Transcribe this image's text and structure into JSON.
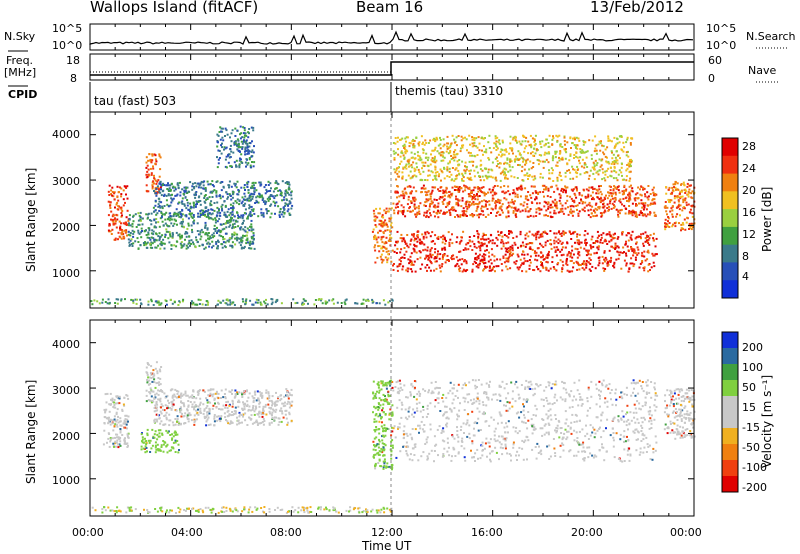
{
  "header": {
    "station": "Wallops Island (fitACF)",
    "beam": "Beam 16",
    "date": "13/Feb/2012"
  },
  "top_panels": {
    "nsky_label": "N.Sky",
    "nsky_ticks": [
      "10^5",
      "10^0"
    ],
    "nsearch_label": "N.Search",
    "nsearch_ticks": [
      "10^5",
      "10^0"
    ],
    "freq_label": "Freq.",
    "freq_unit": "[MHz]",
    "freq_ticks": [
      "18",
      "8"
    ],
    "nave_label": "Nave",
    "nave_ticks": [
      "60",
      "0"
    ],
    "cpid_label": "CPID",
    "cpid_segments": [
      {
        "label": "tau (fast) 503",
        "start_hour": 0,
        "end_hour": 12
      },
      {
        "label": "themis (tau) 3310",
        "start_hour": 12,
        "end_hour": 24
      }
    ]
  },
  "time_axis": {
    "label": "Time UT",
    "ticks": [
      "00:00",
      "04:00",
      "08:00",
      "12:00",
      "16:00",
      "20:00",
      "00:00"
    ]
  },
  "chart_data": [
    {
      "type": "heatmap",
      "title": "",
      "xlabel": "Time UT",
      "ylabel": "Slant Range [km]",
      "xlim": [
        0,
        24
      ],
      "ylim": [
        180,
        4500
      ],
      "yticks": [
        "4000",
        "3000",
        "2000",
        "1000"
      ],
      "colorbar": {
        "label": "Power [dB]",
        "ticks": [
          "28",
          "24",
          "20",
          "16",
          "12",
          "8",
          "4"
        ],
        "range": [
          0,
          30
        ]
      },
      "echo_regions": [
        {
          "hours": [
            0.7,
            1.5
          ],
          "ranges_km": [
            1700,
            2900
          ],
          "value": 24
        },
        {
          "hours": [
            2.2,
            2.8
          ],
          "ranges_km": [
            2700,
            3600
          ],
          "value": 24
        },
        {
          "hours": [
            1.5,
            6.5
          ],
          "ranges_km": [
            1500,
            2300
          ],
          "value": 10
        },
        {
          "hours": [
            2.5,
            8.0
          ],
          "ranges_km": [
            2200,
            3000
          ],
          "value": 8
        },
        {
          "hours": [
            5.0,
            6.5
          ],
          "ranges_km": [
            3300,
            4200
          ],
          "value": 8
        },
        {
          "hours": [
            11.2,
            12.0
          ],
          "ranges_km": [
            1200,
            2400
          ],
          "value": 22
        },
        {
          "hours": [
            12.0,
            22.5
          ],
          "ranges_km": [
            1000,
            1900
          ],
          "value": 26
        },
        {
          "hours": [
            12.0,
            22.5
          ],
          "ranges_km": [
            2200,
            2900
          ],
          "value": 24
        },
        {
          "hours": [
            12.0,
            21.5
          ],
          "ranges_km": [
            3000,
            4000
          ],
          "value": 18
        },
        {
          "hours": [
            22.8,
            24.0
          ],
          "ranges_km": [
            1900,
            3000
          ],
          "value": 22
        }
      ]
    },
    {
      "type": "heatmap",
      "title": "",
      "xlabel": "Time UT",
      "ylabel": "Slant Range [km]",
      "xlim": [
        0,
        24
      ],
      "ylim": [
        180,
        4500
      ],
      "yticks": [
        "4000",
        "3000",
        "2000",
        "1000"
      ],
      "colorbar": {
        "label": "Velocity [m s⁻¹]",
        "ticks": [
          "200",
          "100",
          "50",
          "15",
          "-15",
          "-50",
          "-100",
          "-200"
        ],
        "range": [
          -250,
          250
        ]
      },
      "echo_regions": [
        {
          "hours": [
            0.5,
            1.5
          ],
          "ranges_km": [
            1700,
            2900
          ],
          "value": 0
        },
        {
          "hours": [
            2.2,
            2.8
          ],
          "ranges_km": [
            2700,
            3600
          ],
          "value": 0
        },
        {
          "hours": [
            2.0,
            3.5
          ],
          "ranges_km": [
            1600,
            2100
          ],
          "value": 40
        },
        {
          "hours": [
            2.5,
            8.0
          ],
          "ranges_km": [
            2200,
            3000
          ],
          "value": 0
        },
        {
          "hours": [
            11.2,
            12.0
          ],
          "ranges_km": [
            1200,
            3200
          ],
          "value": 40
        },
        {
          "hours": [
            12.0,
            22.5
          ],
          "ranges_km": [
            1400,
            3200
          ],
          "value": 0
        },
        {
          "hours": [
            22.8,
            24.0
          ],
          "ranges_km": [
            1900,
            3000
          ],
          "value": 0
        }
      ]
    }
  ],
  "colors": {
    "power": [
      "#1030d8",
      "#2850b8",
      "#3a7a8a",
      "#40a040",
      "#9ad040",
      "#f0c020",
      "#f08010",
      "#f03010",
      "#e00000"
    ],
    "velocity_pos": [
      "#1030d8",
      "#2a6aa0",
      "#40a040",
      "#80d040"
    ],
    "velocity_zero": "#c8c8c8",
    "velocity_neg": [
      "#f0b020",
      "#f08010",
      "#f04010",
      "#e00000"
    ]
  }
}
